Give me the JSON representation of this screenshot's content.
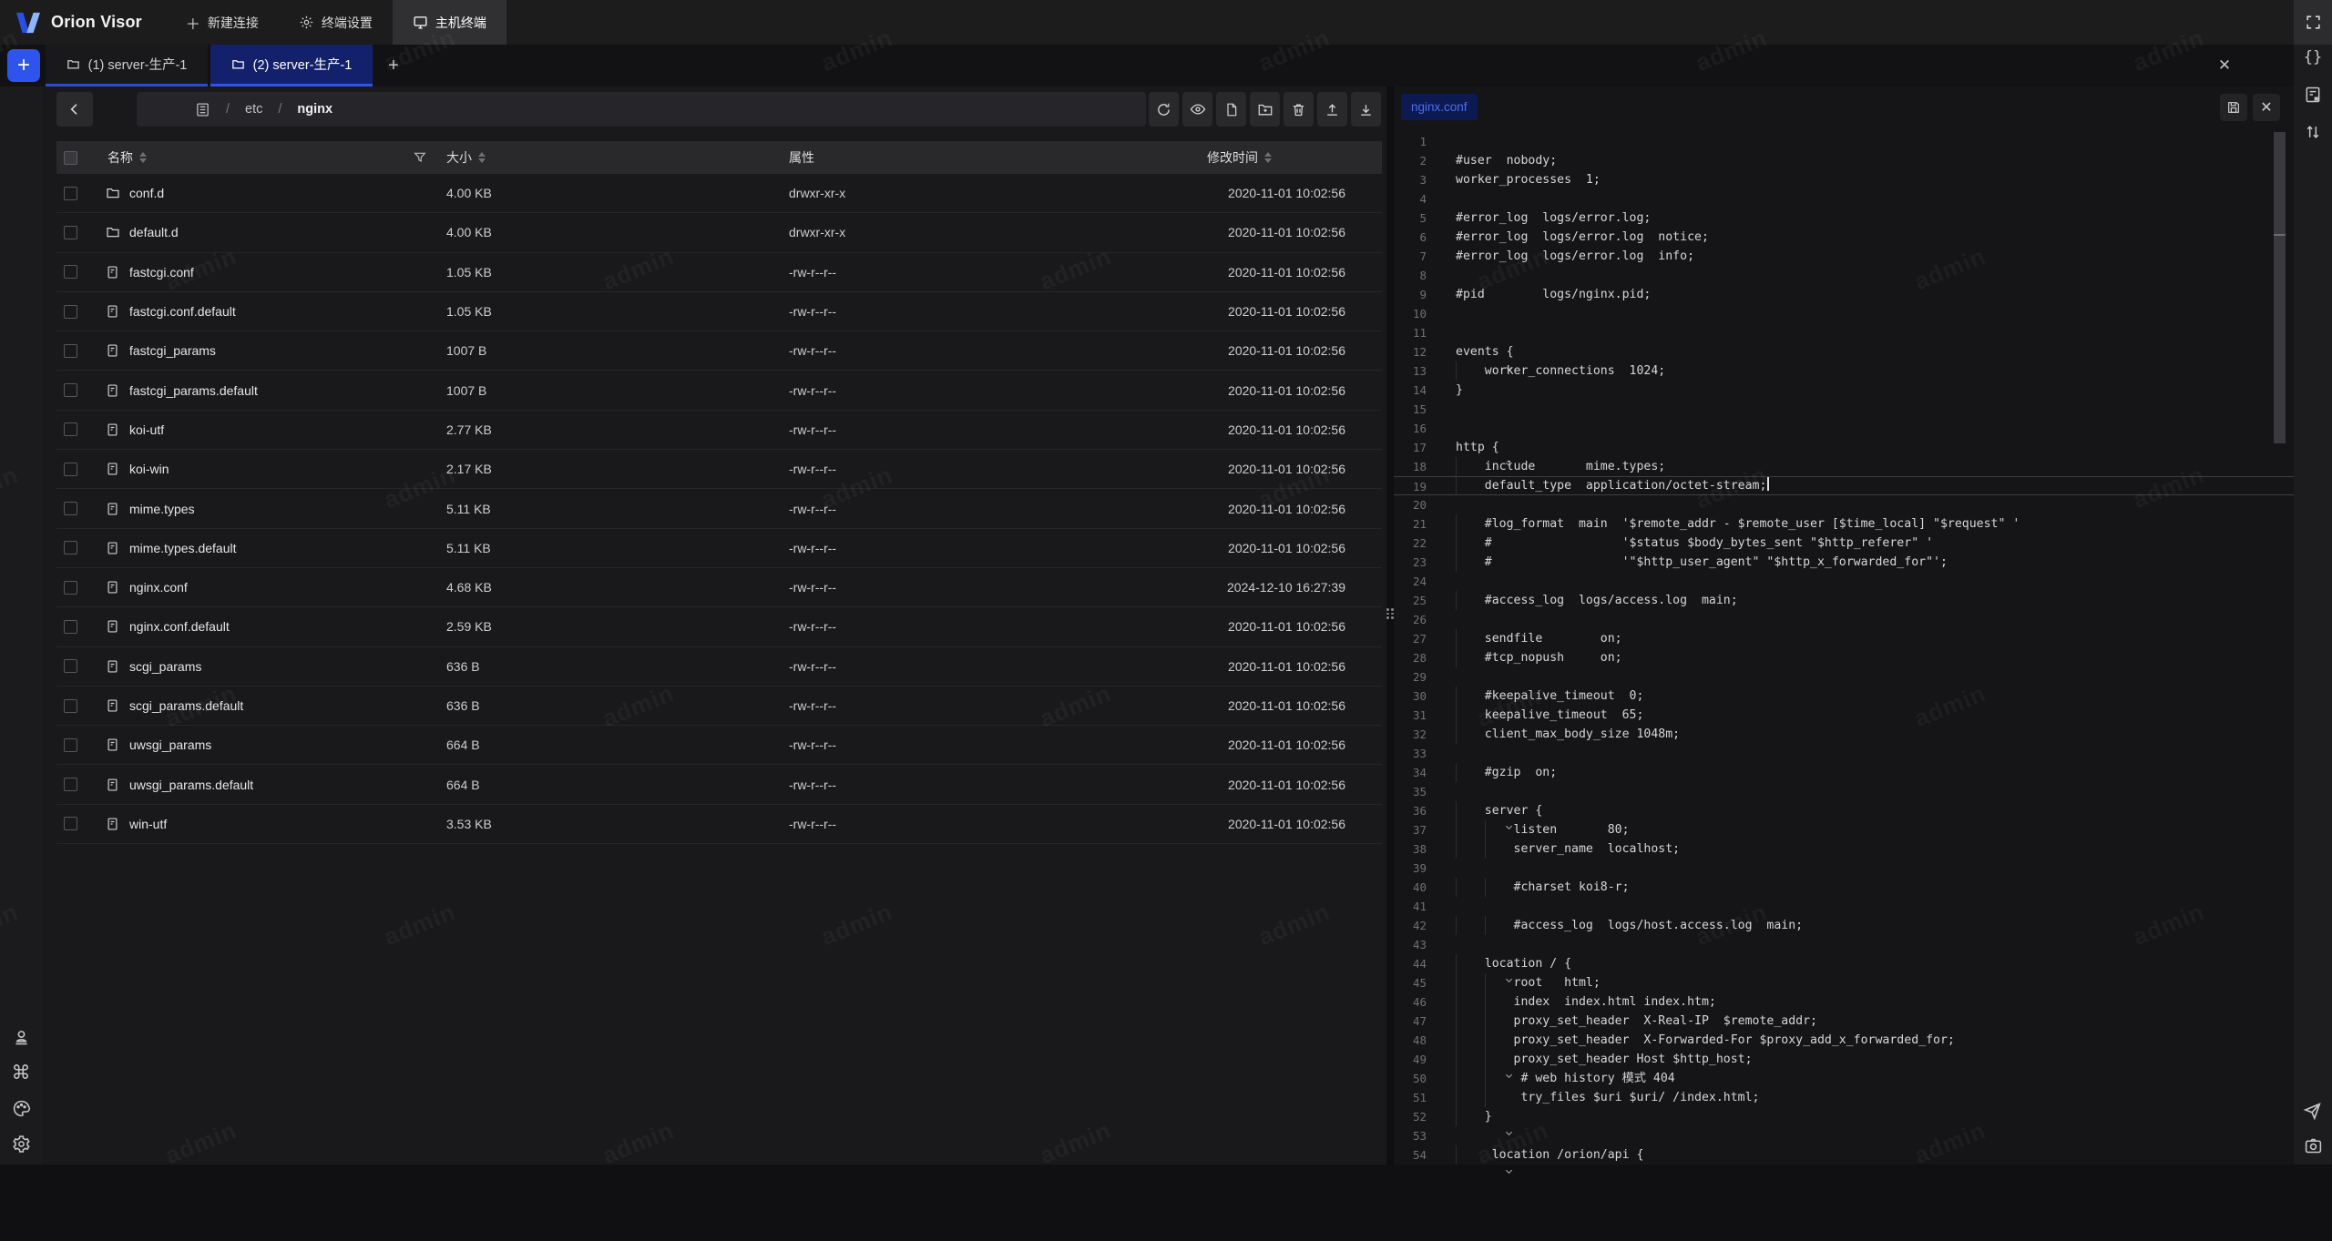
{
  "colors": {
    "accent": "#2f54eb",
    "active_tab_bg": "#13206b",
    "editor_chip_bg": "#0d1a52",
    "editor_chip_text": "#4d6df0"
  },
  "watermark": {
    "text": "admin"
  },
  "topbar": {
    "brand": "Orion Visor",
    "menu": [
      {
        "label": "新建连接",
        "icon": "plus"
      },
      {
        "label": "终端设置",
        "icon": "gear"
      },
      {
        "label": "主机终端",
        "icon": "terminal",
        "active": true
      }
    ]
  },
  "tabbar": {
    "new_tab_plus": "+",
    "tabs": [
      {
        "label": "(1) server-生产-1",
        "active": false
      },
      {
        "label": "(2) server-生产-1",
        "active": true
      }
    ],
    "add_label": "+"
  },
  "file_manager": {
    "breadcrumb": {
      "root_sep": "/",
      "seg1": "etc",
      "sep": "/",
      "seg2": "nginx"
    },
    "headers": {
      "name": "名称",
      "size": "大小",
      "attrs": "属性",
      "mtime": "修改时间"
    },
    "rows": [
      {
        "name": "conf.d",
        "folder": true,
        "size": "4.00 KB",
        "perm": "drwxr-xr-x",
        "time": "2020-11-01 10:02:56"
      },
      {
        "name": "default.d",
        "folder": true,
        "size": "4.00 KB",
        "perm": "drwxr-xr-x",
        "time": "2020-11-01 10:02:56"
      },
      {
        "name": "fastcgi.conf",
        "folder": false,
        "size": "1.05 KB",
        "perm": "-rw-r--r--",
        "time": "2020-11-01 10:02:56"
      },
      {
        "name": "fastcgi.conf.default",
        "folder": false,
        "size": "1.05 KB",
        "perm": "-rw-r--r--",
        "time": "2020-11-01 10:02:56"
      },
      {
        "name": "fastcgi_params",
        "folder": false,
        "size": "1007 B",
        "perm": "-rw-r--r--",
        "time": "2020-11-01 10:02:56"
      },
      {
        "name": "fastcgi_params.default",
        "folder": false,
        "size": "1007 B",
        "perm": "-rw-r--r--",
        "time": "2020-11-01 10:02:56"
      },
      {
        "name": "koi-utf",
        "folder": false,
        "size": "2.77 KB",
        "perm": "-rw-r--r--",
        "time": "2020-11-01 10:02:56"
      },
      {
        "name": "koi-win",
        "folder": false,
        "size": "2.17 KB",
        "perm": "-rw-r--r--",
        "time": "2020-11-01 10:02:56"
      },
      {
        "name": "mime.types",
        "folder": false,
        "size": "5.11 KB",
        "perm": "-rw-r--r--",
        "time": "2020-11-01 10:02:56"
      },
      {
        "name": "mime.types.default",
        "folder": false,
        "size": "5.11 KB",
        "perm": "-rw-r--r--",
        "time": "2020-11-01 10:02:56"
      },
      {
        "name": "nginx.conf",
        "folder": false,
        "size": "4.68 KB",
        "perm": "-rw-r--r--",
        "time": "2024-12-10 16:27:39"
      },
      {
        "name": "nginx.conf.default",
        "folder": false,
        "size": "2.59 KB",
        "perm": "-rw-r--r--",
        "time": "2020-11-01 10:02:56"
      },
      {
        "name": "scgi_params",
        "folder": false,
        "size": "636 B",
        "perm": "-rw-r--r--",
        "time": "2020-11-01 10:02:56"
      },
      {
        "name": "scgi_params.default",
        "folder": false,
        "size": "636 B",
        "perm": "-rw-r--r--",
        "time": "2020-11-01 10:02:56"
      },
      {
        "name": "uwsgi_params",
        "folder": false,
        "size": "664 B",
        "perm": "-rw-r--r--",
        "time": "2020-11-01 10:02:56"
      },
      {
        "name": "uwsgi_params.default",
        "folder": false,
        "size": "664 B",
        "perm": "-rw-r--r--",
        "time": "2020-11-01 10:02:56"
      },
      {
        "name": "win-utf",
        "folder": false,
        "size": "3.53 KB",
        "perm": "-rw-r--r--",
        "time": "2020-11-01 10:02:56"
      }
    ]
  },
  "editor": {
    "file_tab": "nginx.conf",
    "lines": [
      {
        "n": 1,
        "t": ""
      },
      {
        "n": 2,
        "t": "#user  nobody;"
      },
      {
        "n": 3,
        "t": "worker_processes  1;"
      },
      {
        "n": 4,
        "t": ""
      },
      {
        "n": 5,
        "t": "#error_log  logs/error.log;"
      },
      {
        "n": 6,
        "t": "#error_log  logs/error.log  notice;"
      },
      {
        "n": 7,
        "t": "#error_log  logs/error.log  info;"
      },
      {
        "n": 8,
        "t": ""
      },
      {
        "n": 9,
        "t": "#pid        logs/nginx.pid;"
      },
      {
        "n": 10,
        "t": ""
      },
      {
        "n": 11,
        "t": ""
      },
      {
        "n": 12,
        "t": "events {",
        "f": true
      },
      {
        "n": 13,
        "t": "    worker_connections  1024;",
        "g": [
          0
        ]
      },
      {
        "n": 14,
        "t": "}"
      },
      {
        "n": 15,
        "t": ""
      },
      {
        "n": 16,
        "t": ""
      },
      {
        "n": 17,
        "t": "http {",
        "f": true
      },
      {
        "n": 18,
        "t": "    include       mime.types;",
        "g": [
          0
        ]
      },
      {
        "n": 19,
        "t": "    default_type  application/octet-stream;",
        "g": [
          0
        ],
        "cur": true,
        "cursor": true
      },
      {
        "n": 20,
        "t": "",
        "g": [
          0
        ]
      },
      {
        "n": 21,
        "t": "    #log_format  main  '$remote_addr - $remote_user [$time_local] \"$request\" '",
        "g": [
          0
        ]
      },
      {
        "n": 22,
        "t": "    #                  '$status $body_bytes_sent \"$http_referer\" '",
        "g": [
          0
        ]
      },
      {
        "n": 23,
        "t": "    #                  '\"$http_user_agent\" \"$http_x_forwarded_for\"';",
        "g": [
          0
        ]
      },
      {
        "n": 24,
        "t": "",
        "g": [
          0
        ]
      },
      {
        "n": 25,
        "t": "    #access_log  logs/access.log  main;",
        "g": [
          0
        ]
      },
      {
        "n": 26,
        "t": "",
        "g": [
          0
        ]
      },
      {
        "n": 27,
        "t": "    sendfile        on;",
        "g": [
          0
        ]
      },
      {
        "n": 28,
        "t": "    #tcp_nopush     on;",
        "g": [
          0
        ]
      },
      {
        "n": 29,
        "t": "",
        "g": [
          0
        ]
      },
      {
        "n": 30,
        "t": "    #keepalive_timeout  0;",
        "g": [
          0
        ]
      },
      {
        "n": 31,
        "t": "    keepalive_timeout  65;",
        "g": [
          0
        ]
      },
      {
        "n": 32,
        "t": "    client_max_body_size 1048m;",
        "g": [
          0
        ]
      },
      {
        "n": 33,
        "t": "",
        "g": [
          0
        ]
      },
      {
        "n": 34,
        "t": "    #gzip  on;",
        "g": [
          0
        ]
      },
      {
        "n": 35,
        "t": "",
        "g": [
          0
        ]
      },
      {
        "n": 36,
        "t": "    server {",
        "f": true,
        "g": [
          0
        ]
      },
      {
        "n": 37,
        "t": "        listen       80;",
        "g": [
          0,
          4
        ]
      },
      {
        "n": 38,
        "t": "        server_name  localhost;",
        "g": [
          0,
          4
        ]
      },
      {
        "n": 39,
        "t": "",
        "g": [
          0,
          4
        ]
      },
      {
        "n": 40,
        "t": "        #charset koi8-r;",
        "g": [
          0,
          4
        ]
      },
      {
        "n": 41,
        "t": "",
        "g": [
          0,
          4
        ]
      },
      {
        "n": 42,
        "t": "        #access_log  logs/host.access.log  main;",
        "g": [
          0,
          4
        ]
      },
      {
        "n": 43,
        "t": "",
        "g": [
          0,
          4
        ]
      },
      {
        "n": 44,
        "t": "    location / {",
        "f": true,
        "g": [
          0
        ]
      },
      {
        "n": 45,
        "t": "        root   html;",
        "g": [
          0,
          4
        ]
      },
      {
        "n": 46,
        "t": "        index  index.html index.htm;",
        "g": [
          0,
          4
        ]
      },
      {
        "n": 47,
        "t": "        proxy_set_header  X-Real-IP  $remote_addr;",
        "g": [
          0,
          4
        ]
      },
      {
        "n": 48,
        "t": "        proxy_set_header  X-Forwarded-For $proxy_add_x_forwarded_for;",
        "g": [
          0,
          4
        ]
      },
      {
        "n": 49,
        "t": "        proxy_set_header Host $http_host;",
        "f": true,
        "g": [
          0,
          4
        ]
      },
      {
        "n": 50,
        "t": "         # web history 模式 404",
        "g": [
          0,
          4
        ]
      },
      {
        "n": 51,
        "t": "         try_files $uri $uri/ /index.html;",
        "g": [
          0,
          4
        ]
      },
      {
        "n": 52,
        "t": "    }",
        "f": true,
        "g": [
          0
        ]
      },
      {
        "n": 53,
        "t": "",
        "g": [
          0
        ]
      },
      {
        "n": 54,
        "t": "     location /orion/api {",
        "f": true,
        "g": [
          0
        ]
      }
    ]
  }
}
